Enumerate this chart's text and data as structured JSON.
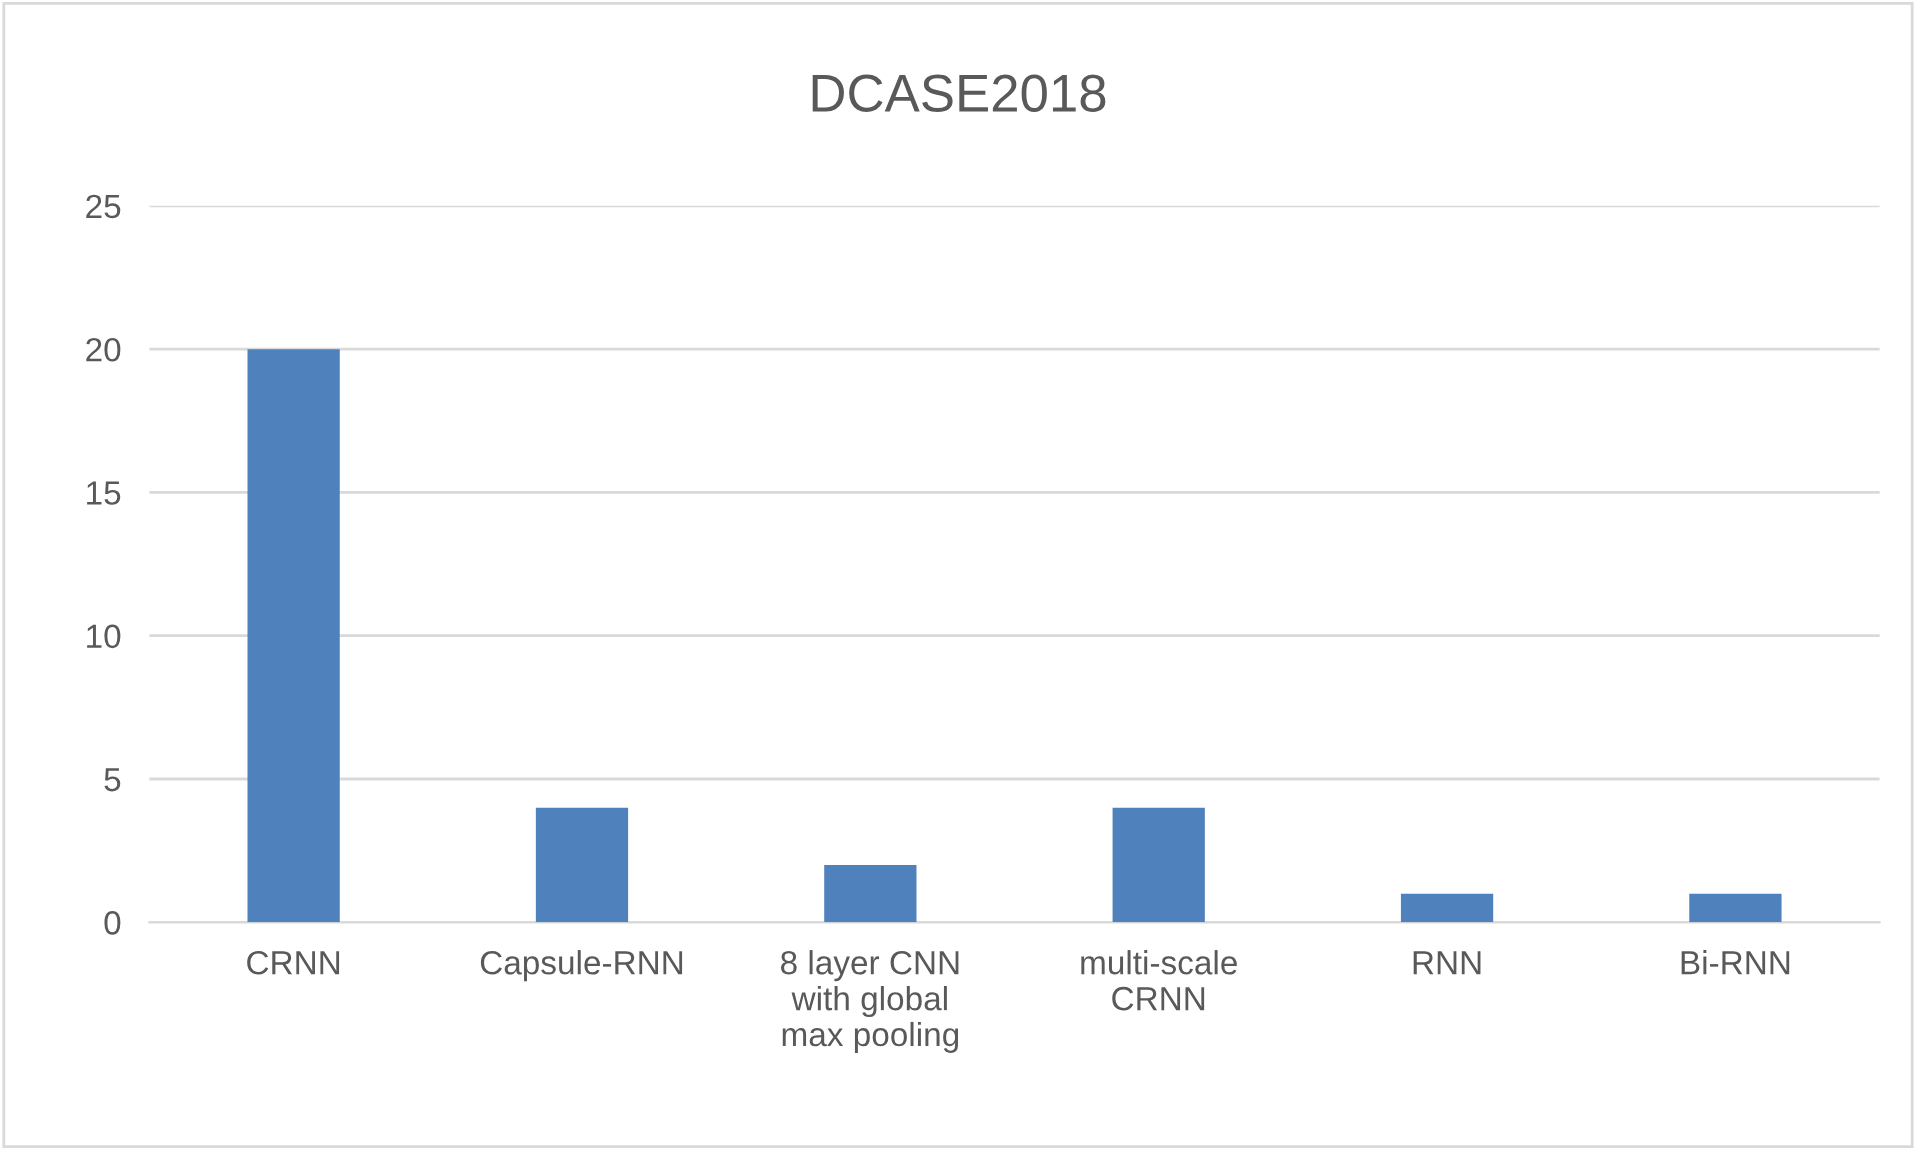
{
  "chart_data": {
    "type": "bar",
    "title": "DCASE2018",
    "categories": [
      "CRNN",
      "Capsule-RNN",
      "8 layer CNN\nwith global\nmax pooling",
      "multi-scale\nCRNN",
      "RNN",
      "Bi-RNN"
    ],
    "values": [
      20,
      4,
      2,
      4,
      1,
      1
    ],
    "color": "#4f81bd",
    "ylim": [
      0,
      25
    ],
    "yticks": [
      0,
      5,
      10,
      15,
      20,
      25
    ],
    "grid": "y",
    "legend": false
  }
}
